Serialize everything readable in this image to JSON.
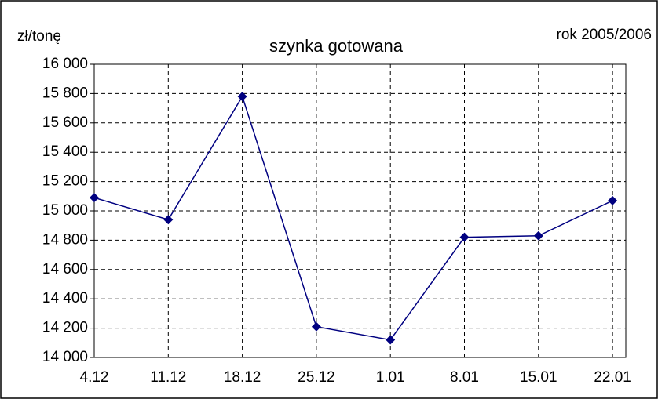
{
  "chart_data": {
    "type": "line",
    "title": "szynka gotowana",
    "y_label": "zł/tonę",
    "annotation": "rok 2005/2006",
    "categories": [
      "4.12",
      "11.12",
      "18.12",
      "25.12",
      "1.01",
      "8.01",
      "15.01",
      "22.01"
    ],
    "series": [
      {
        "color": "#000080",
        "values": [
          15090,
          14940,
          15780,
          14210,
          14120,
          14820,
          14830,
          15070
        ]
      }
    ],
    "ylim": [
      14000,
      16000
    ],
    "yticks": [
      {
        "value": 14000,
        "label": "14 000"
      },
      {
        "value": 14200,
        "label": "14 200"
      },
      {
        "value": 14400,
        "label": "14 400"
      },
      {
        "value": 14600,
        "label": "14 600"
      },
      {
        "value": 14800,
        "label": "14 800"
      },
      {
        "value": 15000,
        "label": "15 000"
      },
      {
        "value": 15200,
        "label": "15 200"
      },
      {
        "value": 15400,
        "label": "15 400"
      },
      {
        "value": 15600,
        "label": "15 600"
      },
      {
        "value": 15800,
        "label": "15 800"
      },
      {
        "value": 16000,
        "label": "16 000"
      }
    ],
    "grid": true
  }
}
